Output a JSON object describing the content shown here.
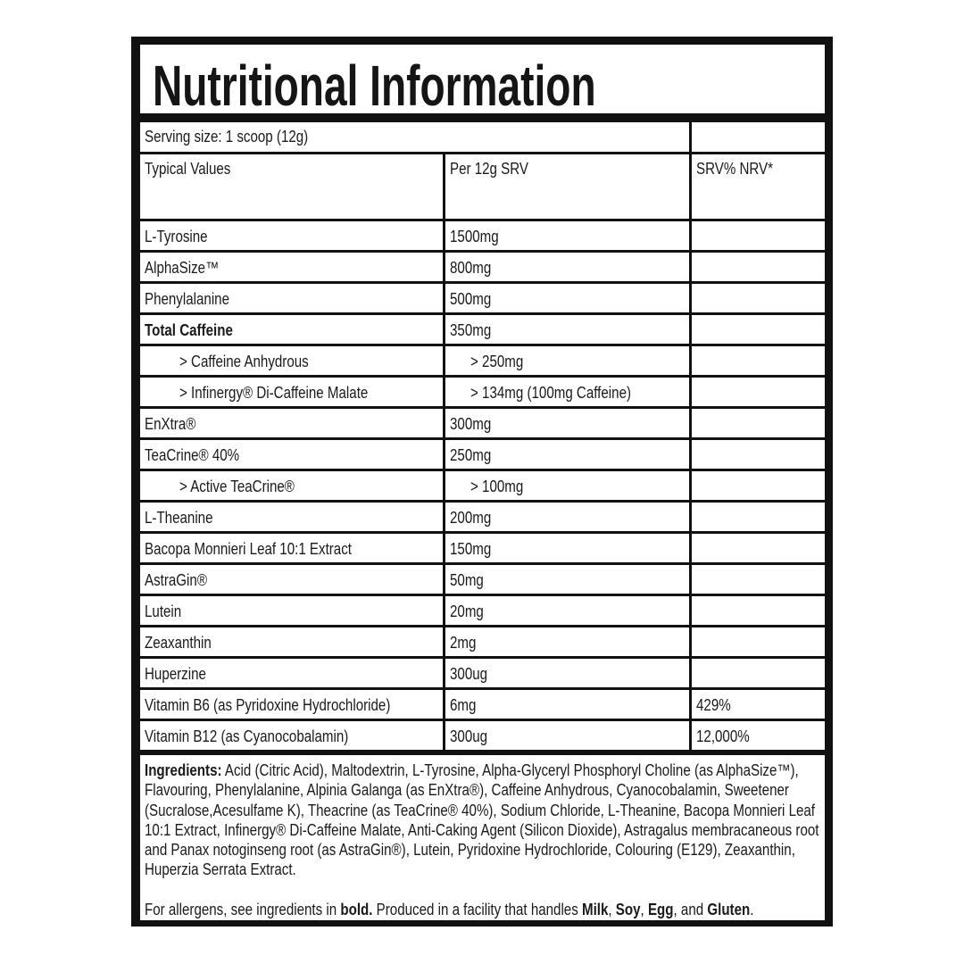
{
  "title": "Nutritional Information",
  "serving_size": "Serving size: 1 scoop (12g)",
  "headers": {
    "name": "Typical Values",
    "per": "Per 12g SRV",
    "nrv": "SRV% NRV*"
  },
  "rows": [
    {
      "name": "L-Tyrosine",
      "per": "1500mg",
      "nrv": ""
    },
    {
      "name": "AlphaSize™",
      "per": "800mg",
      "nrv": ""
    },
    {
      "name": "Phenylalanine",
      "per": "500mg",
      "nrv": ""
    },
    {
      "name": "Total Caffeine",
      "per": "350mg",
      "nrv": "",
      "bold": true
    },
    {
      "name": "> Caffeine Anhydrous",
      "per": "> 250mg",
      "nrv": "",
      "indent": true
    },
    {
      "name": "> Infinergy® Di-Caffeine Malate",
      "per": "> 134mg (100mg Caffeine)",
      "nrv": "",
      "indent": true
    },
    {
      "name": "EnXtra®",
      "per": "300mg",
      "nrv": ""
    },
    {
      "name": "TeaCrine® 40%",
      "per": "250mg",
      "nrv": ""
    },
    {
      "name": "> Active TeaCrine®",
      "per": "> 100mg",
      "nrv": "",
      "indent": true
    },
    {
      "name": "L-Theanine",
      "per": "200mg",
      "nrv": ""
    },
    {
      "name": "Bacopa Monnieri Leaf 10:1 Extract",
      "per": "150mg",
      "nrv": ""
    },
    {
      "name": "AstraGin®",
      "per": "50mg",
      "nrv": ""
    },
    {
      "name": "Lutein",
      "per": "20mg",
      "nrv": ""
    },
    {
      "name": "Zeaxanthin",
      "per": "2mg",
      "nrv": ""
    },
    {
      "name": "Huperzine",
      "per": "300ug",
      "nrv": ""
    },
    {
      "name": "Vitamin B6 (as Pyridoxine Hydrochloride)",
      "per": "6mg",
      "nrv": "429%"
    },
    {
      "name": "Vitamin B12 (as Cyanocobalamin)",
      "per": "300ug",
      "nrv": "12,000%"
    }
  ],
  "ingredients": {
    "label": "Ingredients:",
    "text": " Acid (Citric Acid), Maltodextrin, L-Tyrosine, Alpha-Glyceryl Phosphoryl Choline (as AlphaSize™), Flavouring, Phenylalanine, Alpinia Galanga (as EnXtra®), Caffeine Anhydrous, Cyanocobalamin, Sweetener (Sucralose,Acesulfame K), Theacrine (as TeaCrine® 40%), Sodium Chloride, L-Theanine, Bacopa Monnieri Leaf 10:1 Extract, Infinergy® Di-Caffeine Malate, Anti-Caking Agent (Silicon Dioxide), Astragalus membracaneous root and Panax notoginseng root (as AstraGin®), Lutein, Pyridoxine Hydrochloride, Colouring (E129), Zeaxanthin, Huperzia Serrata Extract."
  },
  "allergens": {
    "p1": "For allergens, see ingredients in ",
    "b1": "bold.",
    "p2": " Produced in a facility that handles ",
    "b2": "Milk",
    "p3": ", ",
    "b3": "Soy",
    "p4": ", ",
    "b4": "Egg",
    "p5": ", and ",
    "b5": "Gluten",
    "p6": "."
  }
}
